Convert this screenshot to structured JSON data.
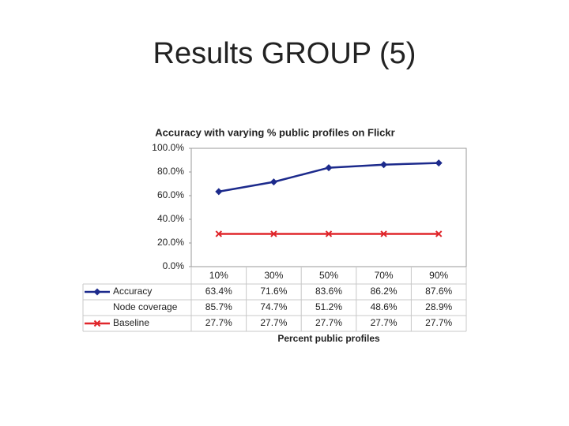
{
  "title": "Results GROUP (5)",
  "chart_data": {
    "type": "line",
    "title": "Accuracy with varying % public profiles on Flickr",
    "x_label": "Percent public profiles",
    "categories": [
      "10%",
      "30%",
      "50%",
      "70%",
      "90%"
    ],
    "series": [
      {
        "name": "Accuracy",
        "color": "#1c2a8c",
        "marker": "diamond",
        "values": [
          63.4,
          71.6,
          83.6,
          86.2,
          87.6
        ],
        "value_labels": [
          "63.4%",
          "71.6%",
          "83.6%",
          "86.2%",
          "87.6%"
        ]
      },
      {
        "name": "Node coverage",
        "values": [
          85.7,
          74.7,
          51.2,
          48.6,
          28.9
        ],
        "value_labels": [
          "85.7%",
          "74.7%",
          "51.2%",
          "48.6%",
          "28.9%"
        ]
      },
      {
        "name": "Baseline",
        "color": "#e0262b",
        "marker": "x",
        "values": [
          27.7,
          27.7,
          27.7,
          27.7,
          27.7
        ],
        "value_labels": [
          "27.7%",
          "27.7%",
          "27.7%",
          "27.7%",
          "27.7%"
        ]
      }
    ],
    "ylim": [
      0,
      100
    ],
    "yticks": [
      {
        "value": 0,
        "label": "0.0%"
      },
      {
        "value": 20,
        "label": "20.0%"
      },
      {
        "value": 40,
        "label": "40.0%"
      },
      {
        "value": 60,
        "label": "60.0%"
      },
      {
        "value": 80,
        "label": "80.0%"
      },
      {
        "value": 100,
        "label": "100.0%"
      }
    ],
    "grid": false
  }
}
